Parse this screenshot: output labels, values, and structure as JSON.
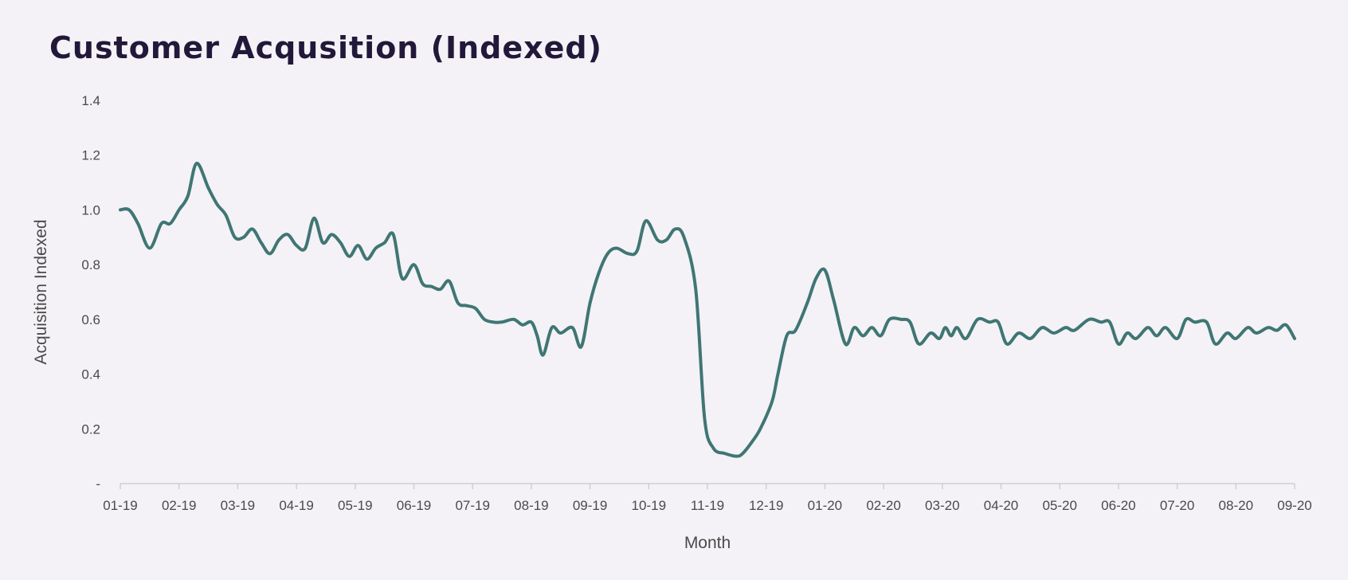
{
  "chart_data": {
    "type": "line",
    "title": "Customer Acqusition (Indexed)",
    "xlabel": "Month",
    "ylabel": "Acquisition Indexed",
    "ylim": [
      0,
      1.4
    ],
    "y_ticks": [
      0,
      0.2,
      0.4,
      0.6,
      0.8,
      1.0,
      1.2,
      1.4
    ],
    "y_tick_labels": [
      "-",
      "0.2",
      "0.4",
      "0.6",
      "0.8",
      "1.0",
      "1.2",
      "1.4"
    ],
    "x_tick_labels": [
      "01-19",
      "02-19",
      "03-19",
      "04-19",
      "05-19",
      "06-19",
      "07-19",
      "08-19",
      "09-19",
      "10-19",
      "11-19",
      "12-19",
      "01-20",
      "02-20",
      "03-20",
      "04-20",
      "05-20",
      "06-20",
      "07-20",
      "08-20",
      "09-20"
    ],
    "grid": false,
    "series": [
      {
        "color": "#3f7674",
        "x": [
          0,
          0.15,
          0.3,
          0.5,
          0.7,
          0.85,
          1.0,
          1.15,
          1.3,
          1.5,
          1.65,
          1.8,
          1.95,
          2.1,
          2.25,
          2.4,
          2.55,
          2.7,
          2.85,
          3.0,
          3.15,
          3.3,
          3.45,
          3.6,
          3.75,
          3.9,
          4.05,
          4.2,
          4.35,
          4.5,
          4.65,
          4.8,
          5.0,
          5.15,
          5.3,
          5.45,
          5.6,
          5.75,
          5.9,
          6.05,
          6.2,
          6.35,
          6.5,
          6.7,
          6.85,
          7.0,
          7.1,
          7.2,
          7.35,
          7.5,
          7.7,
          7.85,
          8.0,
          8.15,
          8.3,
          8.45,
          8.65,
          8.8,
          8.95,
          9.15,
          9.3,
          9.45,
          9.6,
          9.8,
          9.95,
          10.1,
          10.3,
          10.5,
          10.6,
          10.75,
          10.9,
          11.1,
          11.2,
          11.35,
          11.5,
          11.7,
          11.85,
          12.0,
          12.15,
          12.35,
          12.5,
          12.65,
          12.8,
          12.95,
          13.1,
          13.3,
          13.45,
          13.6,
          13.8,
          13.95,
          14.05,
          14.15,
          14.25,
          14.4,
          14.6,
          14.8,
          14.95,
          15.1,
          15.3,
          15.5,
          15.7,
          15.9,
          16.1,
          16.25,
          16.5,
          16.7,
          16.85,
          17.0,
          17.15,
          17.3,
          17.5,
          17.65,
          17.8,
          18.0,
          18.15,
          18.3,
          18.5,
          18.65,
          18.85,
          19.0,
          19.2,
          19.35,
          19.55,
          19.7,
          19.85,
          20.0
        ],
        "values": [
          1.0,
          1.0,
          0.95,
          0.86,
          0.95,
          0.95,
          1.0,
          1.05,
          1.17,
          1.08,
          1.02,
          0.98,
          0.9,
          0.9,
          0.93,
          0.88,
          0.84,
          0.89,
          0.91,
          0.87,
          0.86,
          0.97,
          0.88,
          0.91,
          0.88,
          0.83,
          0.87,
          0.82,
          0.86,
          0.88,
          0.91,
          0.75,
          0.8,
          0.73,
          0.72,
          0.71,
          0.74,
          0.66,
          0.65,
          0.64,
          0.6,
          0.59,
          0.59,
          0.6,
          0.58,
          0.59,
          0.54,
          0.47,
          0.57,
          0.55,
          0.57,
          0.5,
          0.66,
          0.77,
          0.84,
          0.86,
          0.84,
          0.85,
          0.96,
          0.89,
          0.89,
          0.93,
          0.9,
          0.71,
          0.24,
          0.13,
          0.11,
          0.1,
          0.11,
          0.15,
          0.2,
          0.3,
          0.4,
          0.54,
          0.56,
          0.66,
          0.75,
          0.78,
          0.67,
          0.51,
          0.57,
          0.54,
          0.57,
          0.54,
          0.6,
          0.6,
          0.59,
          0.51,
          0.55,
          0.53,
          0.57,
          0.54,
          0.57,
          0.53,
          0.6,
          0.59,
          0.59,
          0.51,
          0.55,
          0.53,
          0.57,
          0.55,
          0.57,
          0.56,
          0.6,
          0.59,
          0.59,
          0.51,
          0.55,
          0.53,
          0.57,
          0.54,
          0.57,
          0.53,
          0.6,
          0.59,
          0.59,
          0.51,
          0.55,
          0.53,
          0.57,
          0.55,
          0.57,
          0.56,
          0.58,
          0.53
        ]
      }
    ]
  }
}
